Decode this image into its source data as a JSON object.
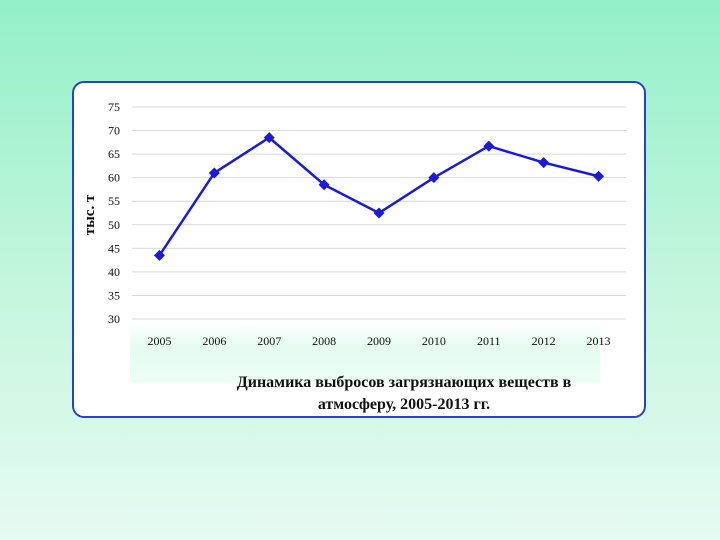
{
  "chart_data": {
    "type": "line",
    "title": "Динамика выбросов загрязнающих веществ в атмосферу, 2005-2013 гг.",
    "title_lines": [
      "Динамика выбросов загрязнающих веществ в",
      "атмосферу, 2005-2013 гг."
    ],
    "xlabel": "",
    "ylabel": "тыс. т",
    "categories": [
      "2005",
      "2006",
      "2007",
      "2008",
      "2009",
      "2010",
      "2011",
      "2012",
      "2013"
    ],
    "values": [
      43.5,
      61,
      68.5,
      58.5,
      52.5,
      60,
      66.7,
      63.2,
      60.3
    ],
    "ylim": [
      30,
      75
    ],
    "yticks": [
      "30",
      "35",
      "40",
      "45",
      "50",
      "55",
      "60",
      "65",
      "70",
      "75"
    ],
    "grid": true,
    "legend": "none",
    "marker": "diamond",
    "colors": {
      "line": "#1a1adf",
      "marker": "#1a1adf",
      "grid": "#d9d9d9",
      "frame": "#2a3fd4"
    }
  }
}
